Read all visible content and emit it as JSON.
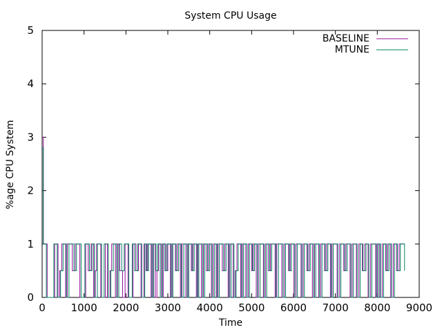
{
  "chart_data": {
    "type": "line",
    "title": "System CPU Usage",
    "xlabel": "Time",
    "ylabel": "%age CPU System",
    "xlim": [
      0,
      9000
    ],
    "ylim": [
      0,
      5
    ],
    "x_ticks": [
      "0",
      "1000",
      "2000",
      "3000",
      "4000",
      "5000",
      "6000",
      "7000",
      "8000",
      "9000"
    ],
    "y_ticks": [
      "0",
      "1",
      "2",
      "3",
      "4",
      "5"
    ],
    "grid": false,
    "legend_position": "top-right",
    "step_style": "step",
    "series": [
      {
        "name": "BASELINE",
        "color": "#94109a",
        "points": [
          [
            0,
            3
          ],
          [
            30,
            1
          ],
          [
            120,
            0
          ],
          [
            300,
            1
          ],
          [
            380,
            0
          ],
          [
            420,
            0.5
          ],
          [
            470,
            1
          ],
          [
            560,
            0
          ],
          [
            600,
            1
          ],
          [
            620,
            1
          ],
          [
            720,
            0.5
          ],
          [
            790,
            1
          ],
          [
            900,
            0
          ],
          [
            1040,
            1
          ],
          [
            1100,
            0.5
          ],
          [
            1170,
            1
          ],
          [
            1230,
            0
          ],
          [
            1270,
            0.5
          ],
          [
            1300,
            1
          ],
          [
            1400,
            0
          ],
          [
            1510,
            1
          ],
          [
            1560,
            0
          ],
          [
            1620,
            0.5
          ],
          [
            1660,
            1
          ],
          [
            1750,
            0
          ],
          [
            1800,
            1
          ],
          [
            1850,
            0.5
          ],
          [
            1920,
            0
          ],
          [
            1980,
            1
          ],
          [
            2050,
            0
          ],
          [
            2170,
            1
          ],
          [
            2240,
            0.5
          ],
          [
            2300,
            1
          ],
          [
            2360,
            0
          ],
          [
            2430,
            1
          ],
          [
            2480,
            0.5
          ],
          [
            2520,
            1
          ],
          [
            2600,
            0
          ],
          [
            2640,
            1
          ],
          [
            2700,
            0
          ],
          [
            2740,
            0.5
          ],
          [
            2780,
            1
          ],
          [
            2850,
            0
          ],
          [
            2890,
            1
          ],
          [
            2950,
            0.5
          ],
          [
            3000,
            1
          ],
          [
            3060,
            0
          ],
          [
            3100,
            1
          ],
          [
            3180,
            0.5
          ],
          [
            3230,
            1
          ],
          [
            3300,
            0
          ],
          [
            3340,
            1
          ],
          [
            3430,
            0
          ],
          [
            3480,
            1
          ],
          [
            3560,
            0.5
          ],
          [
            3600,
            1
          ],
          [
            3680,
            0
          ],
          [
            3720,
            1
          ],
          [
            3800,
            0
          ],
          [
            3850,
            1
          ],
          [
            3920,
            0.5
          ],
          [
            3970,
            1
          ],
          [
            4040,
            0
          ],
          [
            4090,
            1
          ],
          [
            4160,
            0
          ],
          [
            4200,
            1
          ],
          [
            4300,
            0.5
          ],
          [
            4360,
            1
          ],
          [
            4440,
            0
          ],
          [
            4480,
            1
          ],
          [
            4560,
            0
          ],
          [
            4610,
            0.5
          ],
          [
            4650,
            1
          ],
          [
            4740,
            0
          ],
          [
            4780,
            1
          ],
          [
            4860,
            0
          ],
          [
            4920,
            1
          ],
          [
            5000,
            0.5
          ],
          [
            5040,
            1
          ],
          [
            5110,
            0
          ],
          [
            5160,
            1
          ],
          [
            5280,
            0
          ],
          [
            5330,
            1
          ],
          [
            5400,
            0.5
          ],
          [
            5450,
            1
          ],
          [
            5560,
            0
          ],
          [
            5600,
            1
          ],
          [
            5720,
            0
          ],
          [
            5780,
            1
          ],
          [
            5880,
            0.5
          ],
          [
            5920,
            1
          ],
          [
            6010,
            0
          ],
          [
            6060,
            1
          ],
          [
            6180,
            0
          ],
          [
            6230,
            1
          ],
          [
            6320,
            0.5
          ],
          [
            6370,
            1
          ],
          [
            6450,
            0
          ],
          [
            6500,
            1
          ],
          [
            6600,
            0
          ],
          [
            6650,
            1
          ],
          [
            6740,
            0.5
          ],
          [
            6790,
            1
          ],
          [
            6880,
            0
          ],
          [
            6920,
            1
          ],
          [
            7040,
            0
          ],
          [
            7100,
            1
          ],
          [
            7200,
            0.5
          ],
          [
            7250,
            1
          ],
          [
            7350,
            0
          ],
          [
            7400,
            1
          ],
          [
            7500,
            0
          ],
          [
            7560,
            1
          ],
          [
            7640,
            0.5
          ],
          [
            7700,
            1
          ],
          [
            7780,
            0
          ],
          [
            7840,
            1
          ],
          [
            7960,
            0
          ],
          [
            8000,
            1
          ],
          [
            8060,
            0
          ],
          [
            8120,
            1
          ],
          [
            8200,
            0.5
          ],
          [
            8250,
            1
          ],
          [
            8320,
            0
          ],
          [
            8380,
            1
          ],
          [
            8460,
            0.5
          ],
          [
            8520,
            1
          ],
          [
            8600,
            1
          ],
          [
            8650,
            1
          ]
        ]
      },
      {
        "name": "MTUNE",
        "color": "#00855e",
        "points": [
          [
            0,
            2.8
          ],
          [
            25,
            1
          ],
          [
            100,
            0
          ],
          [
            280,
            1
          ],
          [
            360,
            0
          ],
          [
            440,
            0.5
          ],
          [
            500,
            1
          ],
          [
            580,
            0
          ],
          [
            640,
            1
          ],
          [
            760,
            0.5
          ],
          [
            820,
            1
          ],
          [
            930,
            0
          ],
          [
            1020,
            1
          ],
          [
            1130,
            0.5
          ],
          [
            1190,
            1
          ],
          [
            1250,
            0
          ],
          [
            1320,
            1
          ],
          [
            1420,
            0
          ],
          [
            1480,
            1
          ],
          [
            1580,
            0
          ],
          [
            1640,
            0.5
          ],
          [
            1700,
            1
          ],
          [
            1780,
            0
          ],
          [
            1830,
            1
          ],
          [
            1900,
            0.5
          ],
          [
            1960,
            1
          ],
          [
            2070,
            0
          ],
          [
            2150,
            1
          ],
          [
            2210,
            0.5
          ],
          [
            2280,
            1
          ],
          [
            2380,
            0
          ],
          [
            2450,
            1
          ],
          [
            2500,
            0.5
          ],
          [
            2540,
            1
          ],
          [
            2620,
            0
          ],
          [
            2660,
            1
          ],
          [
            2720,
            0.5
          ],
          [
            2760,
            1
          ],
          [
            2820,
            0
          ],
          [
            2870,
            1
          ],
          [
            2930,
            0.5
          ],
          [
            2980,
            1
          ],
          [
            3080,
            0
          ],
          [
            3120,
            1
          ],
          [
            3200,
            0.5
          ],
          [
            3260,
            1
          ],
          [
            3320,
            0
          ],
          [
            3380,
            1
          ],
          [
            3460,
            0
          ],
          [
            3500,
            1
          ],
          [
            3580,
            0.5
          ],
          [
            3630,
            1
          ],
          [
            3700,
            0
          ],
          [
            3740,
            1
          ],
          [
            3830,
            0
          ],
          [
            3880,
            1
          ],
          [
            3950,
            0.5
          ],
          [
            4000,
            1
          ],
          [
            4060,
            0
          ],
          [
            4120,
            1
          ],
          [
            4180,
            0
          ],
          [
            4230,
            1
          ],
          [
            4330,
            0.5
          ],
          [
            4390,
            1
          ],
          [
            4460,
            0
          ],
          [
            4510,
            1
          ],
          [
            4580,
            0
          ],
          [
            4630,
            0.5
          ],
          [
            4680,
            1
          ],
          [
            4760,
            0
          ],
          [
            4810,
            1
          ],
          [
            4890,
            0
          ],
          [
            4950,
            1
          ],
          [
            5020,
            0.5
          ],
          [
            5070,
            1
          ],
          [
            5140,
            0
          ],
          [
            5200,
            1
          ],
          [
            5300,
            0
          ],
          [
            5360,
            1
          ],
          [
            5430,
            0.5
          ],
          [
            5480,
            1
          ],
          [
            5580,
            0
          ],
          [
            5640,
            1
          ],
          [
            5750,
            0
          ],
          [
            5810,
            1
          ],
          [
            5900,
            0.5
          ],
          [
            5950,
            1
          ],
          [
            6030,
            0
          ],
          [
            6090,
            1
          ],
          [
            6200,
            0
          ],
          [
            6260,
            1
          ],
          [
            6340,
            0.5
          ],
          [
            6400,
            1
          ],
          [
            6480,
            0
          ],
          [
            6530,
            1
          ],
          [
            6620,
            0
          ],
          [
            6680,
            1
          ],
          [
            6760,
            0.5
          ],
          [
            6820,
            1
          ],
          [
            6900,
            0
          ],
          [
            6950,
            1
          ],
          [
            7060,
            0
          ],
          [
            7130,
            1
          ],
          [
            7220,
            0.5
          ],
          [
            7280,
            1
          ],
          [
            7370,
            0
          ],
          [
            7430,
            1
          ],
          [
            7520,
            0
          ],
          [
            7590,
            1
          ],
          [
            7660,
            0.5
          ],
          [
            7730,
            1
          ],
          [
            7800,
            0
          ],
          [
            7870,
            1
          ],
          [
            7980,
            0
          ],
          [
            8030,
            1
          ],
          [
            8080,
            0
          ],
          [
            8150,
            1
          ],
          [
            8220,
            0.5
          ],
          [
            8280,
            1
          ],
          [
            8340,
            0
          ],
          [
            8410,
            1
          ],
          [
            8480,
            0.5
          ],
          [
            8550,
            1
          ],
          [
            8620,
            1
          ],
          [
            8650,
            0.5
          ]
        ]
      }
    ]
  }
}
